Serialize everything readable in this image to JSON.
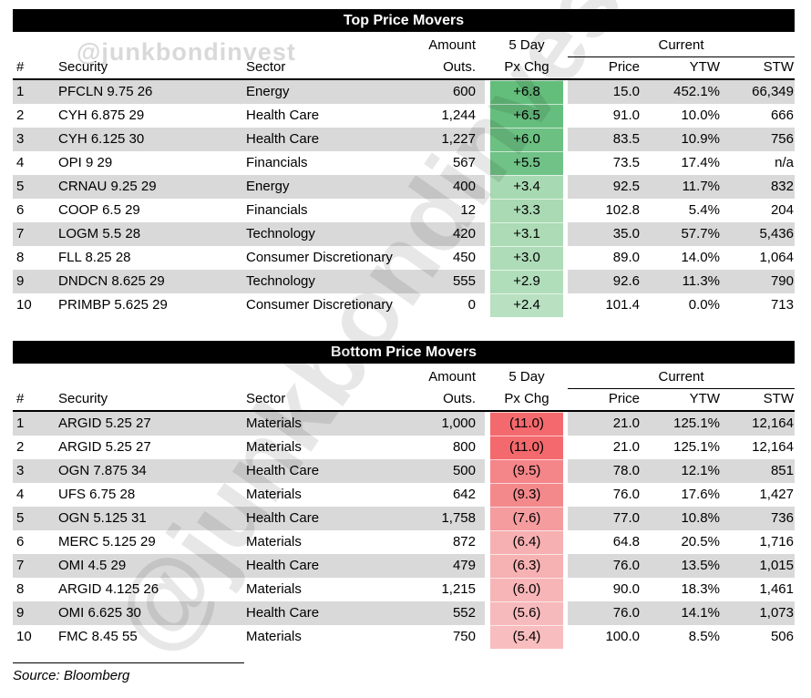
{
  "watermark": "@junkbondinvest",
  "colors": {
    "header_bar": "#000000",
    "row_stripe": "#d9d9d9",
    "positive_dark": "#63bd7b",
    "positive_light": "#b8e0c1",
    "negative_dark": "#f3696d",
    "negative_light": "#f8bdbe"
  },
  "footer": {
    "source_label": "Source: Bloomberg"
  },
  "chart_data": [
    {
      "type": "table",
      "title": "Top Price Movers",
      "group_headers": {
        "amount": "Amount",
        "five_day": "5 Day",
        "current": "Current"
      },
      "column_headers": {
        "rank": "#",
        "security": "Security",
        "sector": "Sector",
        "outs": "Outs.",
        "px_chg": "Px Chg",
        "price": "Price",
        "ytw": "YTW",
        "stw": "STW"
      },
      "rows": [
        {
          "rank": "1",
          "security": "PFCLN 9.75 26",
          "sector": "Energy",
          "outs": "600",
          "px_chg": "+6.8",
          "px_chg_color": "#63bd7b",
          "price": "15.0",
          "ytw": "452.1%",
          "stw": "66,349"
        },
        {
          "rank": "2",
          "security": "CYH 6.875 29",
          "sector": "Health Care",
          "outs": "1,244",
          "px_chg": "+6.5",
          "px_chg_color": "#66be7e",
          "price": "91.0",
          "ytw": "10.0%",
          "stw": "666"
        },
        {
          "rank": "3",
          "security": "CYH 6.125 30",
          "sector": "Health Care",
          "outs": "1,227",
          "px_chg": "+6.0",
          "px_chg_color": "#6bc082",
          "price": "83.5",
          "ytw": "10.9%",
          "stw": "756"
        },
        {
          "rank": "4",
          "security": "OPI 9 29",
          "sector": "Financials",
          "outs": "567",
          "px_chg": "+5.5",
          "px_chg_color": "#70c287",
          "price": "73.5",
          "ytw": "17.4%",
          "stw": "n/a"
        },
        {
          "rank": "5",
          "security": "CRNAU 9.25 29",
          "sector": "Energy",
          "outs": "400",
          "px_chg": "+3.4",
          "px_chg_color": "#a7dab2",
          "price": "92.5",
          "ytw": "11.7%",
          "stw": "832"
        },
        {
          "rank": "6",
          "security": "COOP 6.5 29",
          "sector": "Financials",
          "outs": "12",
          "px_chg": "+3.3",
          "px_chg_color": "#a9dab4",
          "price": "102.8",
          "ytw": "5.4%",
          "stw": "204"
        },
        {
          "rank": "7",
          "security": "LOGM 5.5 28",
          "sector": "Technology",
          "outs": "420",
          "px_chg": "+3.1",
          "px_chg_color": "#acdbb6",
          "price": "35.0",
          "ytw": "57.7%",
          "stw": "5,436"
        },
        {
          "rank": "8",
          "security": "FLL 8.25 28",
          "sector": "Consumer Discretionary",
          "outs": "450",
          "px_chg": "+3.0",
          "px_chg_color": "#aedcb8",
          "price": "89.0",
          "ytw": "14.0%",
          "stw": "1,064"
        },
        {
          "rank": "9",
          "security": "DNDCN 8.625 29",
          "sector": "Technology",
          "outs": "555",
          "px_chg": "+2.9",
          "px_chg_color": "#b0ddba",
          "price": "92.6",
          "ytw": "11.3%",
          "stw": "790"
        },
        {
          "rank": "10",
          "security": "PRIMBP 5.625 29",
          "sector": "Consumer Discretionary",
          "outs": "0",
          "px_chg": "+2.4",
          "px_chg_color": "#b8e0c1",
          "price": "101.4",
          "ytw": "0.0%",
          "stw": "713"
        }
      ]
    },
    {
      "type": "table",
      "title": "Bottom Price Movers",
      "group_headers": {
        "amount": "Amount",
        "five_day": "5 Day",
        "current": "Current"
      },
      "column_headers": {
        "rank": "#",
        "security": "Security",
        "sector": "Sector",
        "outs": "Outs.",
        "px_chg": "Px Chg",
        "price": "Price",
        "ytw": "YTW",
        "stw": "STW"
      },
      "rows": [
        {
          "rank": "1",
          "security": "ARGID 5.25 27",
          "sector": "Materials",
          "outs": "1,000",
          "px_chg": "(11.0)",
          "px_chg_color": "#f3696d",
          "price": "21.0",
          "ytw": "125.1%",
          "stw": "12,164"
        },
        {
          "rank": "2",
          "security": "ARGID 5.25 27",
          "sector": "Materials",
          "outs": "800",
          "px_chg": "(11.0)",
          "px_chg_color": "#f3696d",
          "price": "21.0",
          "ytw": "125.1%",
          "stw": "12,164"
        },
        {
          "rank": "3",
          "security": "OGN 7.875 34",
          "sector": "Health Care",
          "outs": "500",
          "px_chg": "(9.5)",
          "px_chg_color": "#f48589",
          "price": "78.0",
          "ytw": "12.1%",
          "stw": "851"
        },
        {
          "rank": "4",
          "security": "UFS 6.75 28",
          "sector": "Materials",
          "outs": "642",
          "px_chg": "(9.3)",
          "px_chg_color": "#f4898c",
          "price": "76.0",
          "ytw": "17.6%",
          "stw": "1,427"
        },
        {
          "rank": "5",
          "security": "OGN 5.125 31",
          "sector": "Health Care",
          "outs": "1,758",
          "px_chg": "(7.6)",
          "px_chg_color": "#f59c9f",
          "price": "77.0",
          "ytw": "10.8%",
          "stw": "736"
        },
        {
          "rank": "6",
          "security": "MERC 5.125 29",
          "sector": "Materials",
          "outs": "872",
          "px_chg": "(6.4)",
          "px_chg_color": "#f6b0b2",
          "price": "64.8",
          "ytw": "20.5%",
          "stw": "1,716"
        },
        {
          "rank": "7",
          "security": "OMI 4.5 29",
          "sector": "Health Care",
          "outs": "479",
          "px_chg": "(6.3)",
          "px_chg_color": "#f6b1b3",
          "price": "76.0",
          "ytw": "13.5%",
          "stw": "1,015"
        },
        {
          "rank": "8",
          "security": "ARGID 4.125 26",
          "sector": "Materials",
          "outs": "1,215",
          "px_chg": "(6.0)",
          "px_chg_color": "#f7b5b7",
          "price": "90.0",
          "ytw": "18.3%",
          "stw": "1,461"
        },
        {
          "rank": "9",
          "security": "OMI 6.625 30",
          "sector": "Health Care",
          "outs": "552",
          "px_chg": "(5.6)",
          "px_chg_color": "#f7babc",
          "price": "76.0",
          "ytw": "14.1%",
          "stw": "1,073"
        },
        {
          "rank": "10",
          "security": "FMC 8.45 55",
          "sector": "Materials",
          "outs": "750",
          "px_chg": "(5.4)",
          "px_chg_color": "#f8bdbe",
          "price": "100.0",
          "ytw": "8.5%",
          "stw": "506"
        }
      ]
    }
  ]
}
